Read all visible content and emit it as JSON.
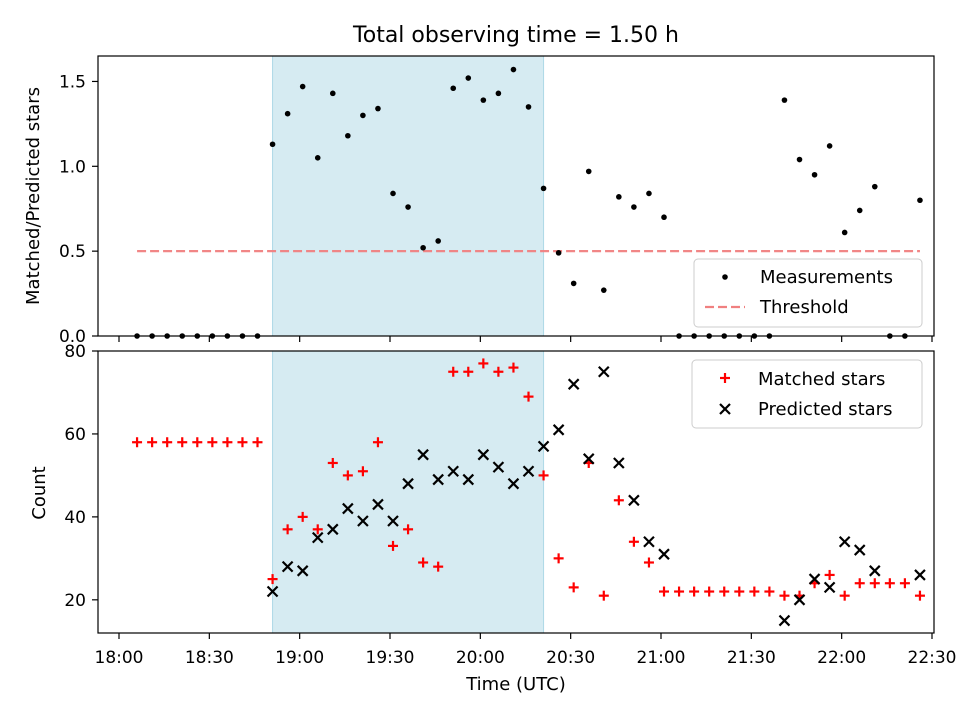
{
  "chart_data": [
    {
      "type": "scatter",
      "title": "Total observing time = 1.50 h",
      "xlabel": "",
      "ylabel": "Matched/Predicted stars",
      "ylim": [
        0,
        1.65
      ],
      "xlim": [
        "18:00",
        "22:30"
      ],
      "y_ticks": [
        "0.0",
        "0.5",
        "1.0",
        "1.5"
      ],
      "shaded_interval": [
        "18:51",
        "20:21"
      ],
      "legend": {
        "placement": "lower-right",
        "entries": [
          "Measurements",
          "Threshold"
        ]
      },
      "series": [
        {
          "name": "Measurements",
          "marker": "dot",
          "color": "#000000",
          "x": [
            "18:06",
            "18:11",
            "18:16",
            "18:21",
            "18:26",
            "18:31",
            "18:36",
            "18:41",
            "18:46",
            "18:51",
            "18:56",
            "19:01",
            "19:06",
            "19:11",
            "19:16",
            "19:21",
            "19:26",
            "19:31",
            "19:36",
            "19:41",
            "19:46",
            "19:51",
            "19:56",
            "20:01",
            "20:06",
            "20:11",
            "20:16",
            "20:21",
            "20:26",
            "20:31",
            "20:36",
            "20:41",
            "20:46",
            "20:51",
            "20:56",
            "21:01",
            "21:06",
            "21:11",
            "21:16",
            "21:21",
            "21:26",
            "21:31",
            "21:36",
            "21:41",
            "21:46",
            "21:51",
            "21:56",
            "22:01",
            "22:06",
            "22:11",
            "22:16",
            "22:21",
            "22:26"
          ],
          "y": [
            0,
            0,
            0,
            0,
            0,
            0,
            0,
            0,
            0,
            1.13,
            1.31,
            1.47,
            1.05,
            1.43,
            1.18,
            1.3,
            1.34,
            0.84,
            0.76,
            0.52,
            0.56,
            1.46,
            1.52,
            1.39,
            1.43,
            1.57,
            1.35,
            0.87,
            0.49,
            0.31,
            0.97,
            0.27,
            0.82,
            0.76,
            0.84,
            0.7,
            0,
            0,
            0,
            0,
            0,
            0,
            0,
            1.39,
            1.04,
            0.95,
            1.12,
            0.61,
            0.74,
            0.88,
            0,
            0,
            0.8
          ]
        },
        {
          "name": "Threshold",
          "marker": "dashed-line",
          "color": "#f08080",
          "x": [
            "18:06",
            "22:26"
          ],
          "y": [
            0.5,
            0.5
          ]
        }
      ]
    },
    {
      "type": "scatter",
      "title": "",
      "xlabel": "Time (UTC)",
      "ylabel": "Count",
      "ylim": [
        12,
        80
      ],
      "xlim": [
        "18:00",
        "22:30"
      ],
      "y_ticks": [
        "20",
        "40",
        "60",
        "80"
      ],
      "x_ticks": [
        "18:00",
        "18:30",
        "19:00",
        "19:30",
        "20:00",
        "20:30",
        "21:00",
        "21:30",
        "22:00",
        "22:30"
      ],
      "shaded_interval": [
        "18:51",
        "20:21"
      ],
      "legend": {
        "placement": "top-right",
        "entries": [
          "Matched stars",
          "Predicted stars"
        ]
      },
      "series": [
        {
          "name": "Matched stars",
          "marker": "plus",
          "color": "#ff0000",
          "x": [
            "18:06",
            "18:11",
            "18:16",
            "18:21",
            "18:26",
            "18:31",
            "18:36",
            "18:41",
            "18:46",
            "18:51",
            "18:56",
            "19:01",
            "19:06",
            "19:11",
            "19:16",
            "19:21",
            "19:26",
            "19:31",
            "19:36",
            "19:41",
            "19:46",
            "19:51",
            "19:56",
            "20:01",
            "20:06",
            "20:11",
            "20:16",
            "20:21",
            "20:26",
            "20:31",
            "20:36",
            "20:41",
            "20:46",
            "20:51",
            "20:56",
            "21:01",
            "21:06",
            "21:11",
            "21:16",
            "21:21",
            "21:26",
            "21:31",
            "21:36",
            "21:41",
            "21:46",
            "21:51",
            "21:56",
            "22:01",
            "22:06",
            "22:11",
            "22:16",
            "22:21",
            "22:26"
          ],
          "y": [
            58,
            58,
            58,
            58,
            58,
            58,
            58,
            58,
            58,
            25,
            37,
            40,
            37,
            53,
            50,
            51,
            58,
            33,
            37,
            29,
            28,
            75,
            75,
            77,
            75,
            76,
            69,
            50,
            30,
            23,
            53,
            21,
            44,
            34,
            29,
            22,
            22,
            22,
            22,
            22,
            22,
            22,
            22,
            21,
            21,
            24,
            26,
            21,
            24,
            24,
            24,
            24,
            21
          ]
        },
        {
          "name": "Predicted stars",
          "marker": "x",
          "color": "#000000",
          "x": [
            "18:51",
            "18:56",
            "19:01",
            "19:06",
            "19:11",
            "19:16",
            "19:21",
            "19:26",
            "19:31",
            "19:36",
            "19:41",
            "19:46",
            "19:51",
            "19:56",
            "20:01",
            "20:06",
            "20:11",
            "20:16",
            "20:21",
            "20:26",
            "20:31",
            "20:36",
            "20:41",
            "20:46",
            "20:51",
            "20:56",
            "21:01",
            "21:41",
            "21:46",
            "21:51",
            "21:56",
            "22:01",
            "22:06",
            "22:11",
            "22:26"
          ],
          "y": [
            22,
            28,
            27,
            35,
            37,
            42,
            39,
            43,
            39,
            48,
            55,
            49,
            51,
            49,
            55,
            52,
            48,
            51,
            57,
            61,
            72,
            54,
            75,
            53,
            44,
            34,
            31,
            15,
            20,
            25,
            23,
            34,
            32,
            27,
            26
          ]
        }
      ]
    }
  ]
}
